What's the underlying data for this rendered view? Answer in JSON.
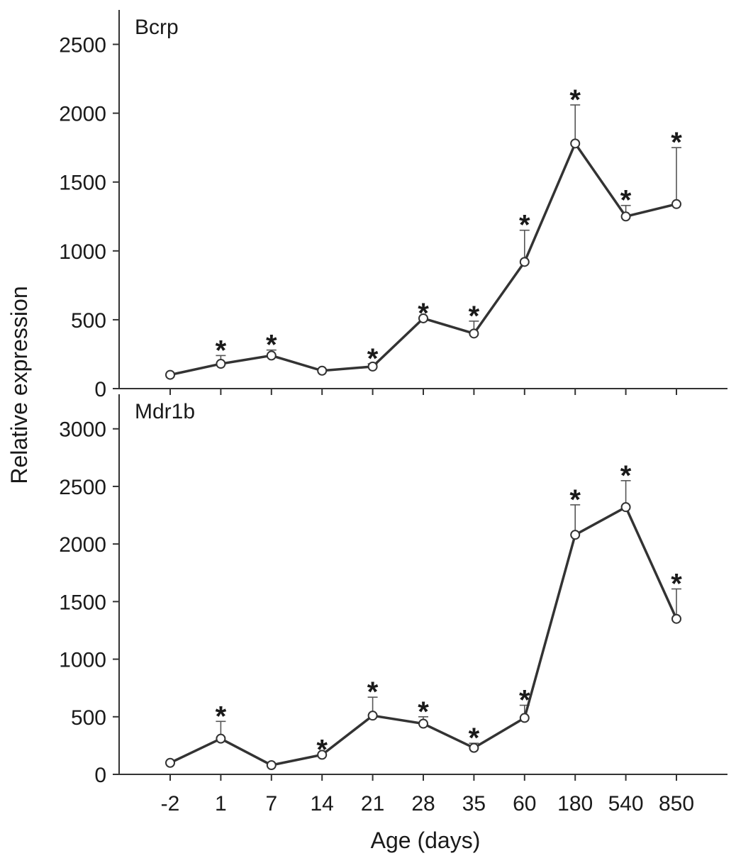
{
  "chart_data": {
    "type": "line",
    "shared_x": {
      "categories": [
        "-2",
        "1",
        "7",
        "14",
        "21",
        "28",
        "35",
        "60",
        "180",
        "540",
        "850"
      ],
      "xlabel": "Age (days)"
    },
    "ylabel": "Relative expression",
    "panels": [
      {
        "label": "Bcrp",
        "ylim": [
          0,
          2750
        ],
        "yticks": [
          0,
          500,
          1000,
          1500,
          2000,
          2500
        ],
        "values": [
          100,
          180,
          240,
          130,
          160,
          510,
          400,
          920,
          1780,
          1250,
          1340
        ],
        "error_upper": [
          0,
          60,
          40,
          0,
          20,
          0,
          90,
          230,
          280,
          80,
          410
        ],
        "significant": [
          false,
          true,
          true,
          false,
          true,
          true,
          true,
          true,
          true,
          true,
          true
        ]
      },
      {
        "label": "Mdr1b",
        "ylim": [
          0,
          3300
        ],
        "yticks": [
          0,
          500,
          1000,
          1500,
          2000,
          2500,
          3000
        ],
        "values": [
          100,
          310,
          80,
          170,
          510,
          440,
          230,
          490,
          2080,
          2320,
          1350
        ],
        "error_upper": [
          0,
          150,
          0,
          0,
          160,
          60,
          40,
          110,
          260,
          230,
          260
        ],
        "significant": [
          false,
          true,
          false,
          true,
          true,
          true,
          true,
          true,
          true,
          true,
          true
        ]
      }
    ],
    "significance_marker": "*",
    "grid": false,
    "legend": "none"
  }
}
